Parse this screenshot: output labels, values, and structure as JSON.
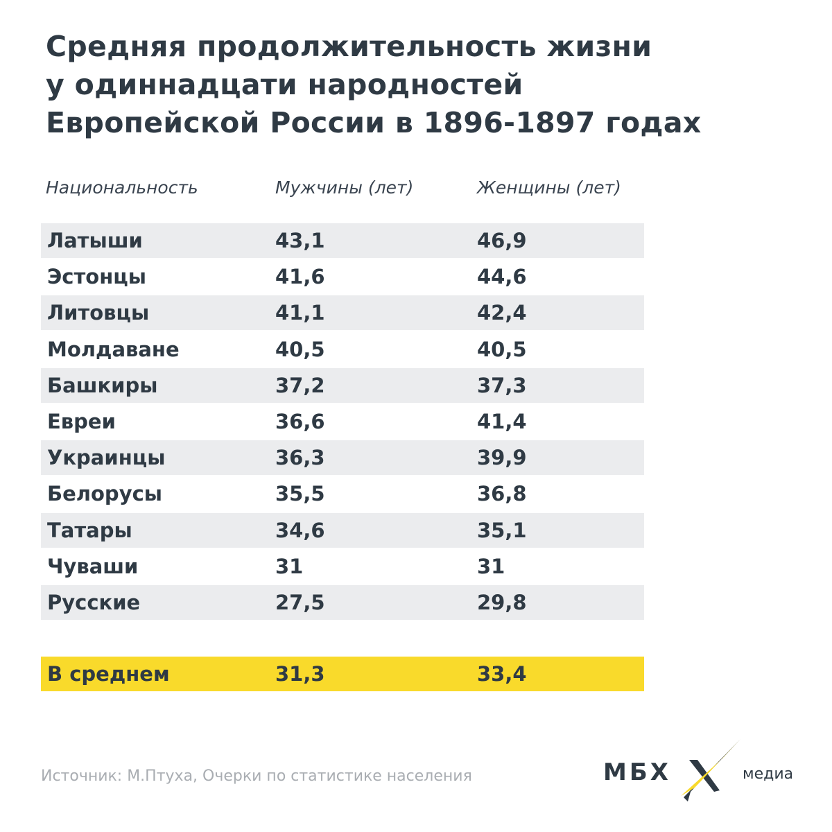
{
  "title": [
    "Средняя продолжительность жизни",
    "у одиннадцати народностей",
    "Европейской России в 1896-1897 годах"
  ],
  "columns": [
    "Национальность",
    "Мужчины (лет)",
    "Женщины (лет)"
  ],
  "rows": [
    [
      "Латыши",
      "43,1",
      "46,9"
    ],
    [
      "Эстонцы",
      "41,6",
      "44,6"
    ],
    [
      "Литовцы",
      "41,1",
      "42,4"
    ],
    [
      "Молдаване",
      "40,5",
      "40,5"
    ],
    [
      "Башкиры",
      "37,2",
      "37,3"
    ],
    [
      "Евреи",
      "36,6",
      "41,4"
    ],
    [
      "Украинцы",
      "36,3",
      "39,9"
    ],
    [
      "Белорусы",
      "35,5",
      "36,8"
    ],
    [
      "Татары",
      "34,6",
      "35,1"
    ],
    [
      "Чуваши",
      "31",
      "31"
    ],
    [
      "Русские",
      "27,5",
      "29,8"
    ]
  ],
  "average": [
    "В среднем",
    "31,3",
    "33,4"
  ],
  "source": "Источник: М.Птуха, Очерки по статистике населения",
  "logo": {
    "left": "МБХ",
    "right": "медиа"
  },
  "colors": {
    "text": "#2f3a44",
    "stripe": "#ebecee",
    "highlight": "#f9da2b"
  },
  "chart_data": {
    "type": "table",
    "title": "Средняя продолжительность жизни у одиннадцати народностей Европейской России в 1896-1897 годах",
    "columns": [
      "Национальность",
      "Мужчины (лет)",
      "Женщины (лет)"
    ],
    "categories": [
      "Латыши",
      "Эстонцы",
      "Литовцы",
      "Молдаване",
      "Башкиры",
      "Евреи",
      "Украинцы",
      "Белорусы",
      "Татары",
      "Чуваши",
      "Русские"
    ],
    "series": [
      {
        "name": "Мужчины (лет)",
        "values": [
          43.1,
          41.6,
          41.1,
          40.5,
          37.2,
          36.6,
          36.3,
          35.5,
          34.6,
          31,
          27.5
        ]
      },
      {
        "name": "Женщины (лет)",
        "values": [
          46.9,
          44.6,
          42.4,
          40.5,
          37.3,
          41.4,
          39.9,
          36.8,
          35.1,
          31,
          29.8
        ]
      }
    ],
    "average": {
      "label": "В среднем",
      "values": [
        31.3,
        33.4
      ]
    }
  }
}
